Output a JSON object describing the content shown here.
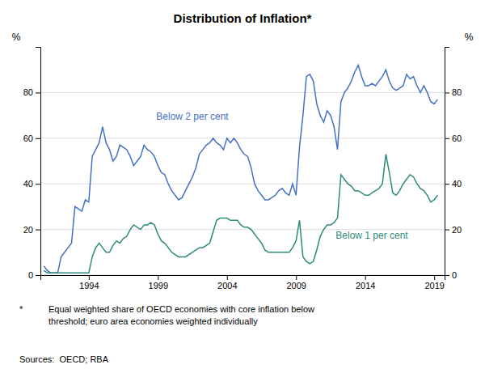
{
  "chart_data": {
    "type": "line",
    "title": "Distribution of Inflation*",
    "ylabel": "%",
    "y2label": "%",
    "footnote_marker": "*",
    "footnote": [
      "Equal weighted share of OECD economies with core inflation below",
      "threshold; euro area economies weighted individually"
    ],
    "sources": "Sources:  OECD; RBA",
    "xlim": [
      1990.5,
      2019.75
    ],
    "xticks": [
      1994,
      1999,
      2004,
      2009,
      2014,
      2019
    ],
    "ylim": [
      0,
      100
    ],
    "yticks": [
      0,
      20,
      40,
      60,
      80
    ],
    "y2lim": [
      0,
      100
    ],
    "y2ticks": [
      0,
      20,
      40,
      60,
      80
    ],
    "grid": true,
    "x": [
      1990.75,
      1991.0,
      1991.25,
      1991.5,
      1991.75,
      1992.0,
      1992.25,
      1992.5,
      1992.75,
      1993.0,
      1993.25,
      1993.5,
      1993.75,
      1994.0,
      1994.25,
      1994.5,
      1994.75,
      1995.0,
      1995.25,
      1995.5,
      1995.75,
      1996.0,
      1996.25,
      1996.5,
      1996.75,
      1997.0,
      1997.25,
      1997.5,
      1997.75,
      1998.0,
      1998.25,
      1998.5,
      1998.75,
      1999.0,
      1999.25,
      1999.5,
      1999.75,
      2000.0,
      2000.25,
      2000.5,
      2000.75,
      2001.0,
      2001.25,
      2001.5,
      2001.75,
      2002.0,
      2002.25,
      2002.5,
      2002.75,
      2003.0,
      2003.25,
      2003.5,
      2003.75,
      2004.0,
      2004.25,
      2004.5,
      2004.75,
      2005.0,
      2005.25,
      2005.5,
      2005.75,
      2006.0,
      2006.25,
      2006.5,
      2006.75,
      2007.0,
      2007.25,
      2007.5,
      2007.75,
      2008.0,
      2008.25,
      2008.5,
      2008.75,
      2009.0,
      2009.25,
      2009.5,
      2009.75,
      2010.0,
      2010.25,
      2010.5,
      2010.75,
      2011.0,
      2011.25,
      2011.5,
      2011.75,
      2012.0,
      2012.25,
      2012.5,
      2012.75,
      2013.0,
      2013.25,
      2013.5,
      2013.75,
      2014.0,
      2014.25,
      2014.5,
      2014.75,
      2015.0,
      2015.25,
      2015.5,
      2015.75,
      2016.0,
      2016.25,
      2016.5,
      2016.75,
      2017.0,
      2017.25,
      2017.5,
      2017.75,
      2018.0,
      2018.25,
      2018.5,
      2018.75,
      2019.0,
      2019.25
    ],
    "series": [
      {
        "name": "Below 2 per cent",
        "color": "#4472C4",
        "values": [
          4,
          2,
          1,
          1,
          1,
          8,
          10,
          12,
          14,
          30,
          29,
          28,
          33,
          32,
          52,
          55,
          58,
          65,
          58,
          55,
          50,
          52,
          57,
          56,
          55,
          52,
          48,
          50,
          52,
          57,
          55,
          54,
          52,
          48,
          45,
          44,
          40,
          37,
          35,
          33,
          34,
          37,
          40,
          43,
          47,
          53,
          55,
          57,
          58,
          60,
          58,
          57,
          55,
          60,
          58,
          60,
          58,
          55,
          53,
          52,
          47,
          40,
          37,
          35,
          33,
          33,
          34,
          35,
          37,
          38,
          36,
          35,
          40,
          35,
          56,
          70,
          87,
          88,
          85,
          75,
          70,
          67,
          72,
          70,
          65,
          55,
          76,
          80,
          82,
          85,
          89,
          92,
          87,
          83,
          83,
          84,
          83,
          85,
          87,
          90,
          85,
          82,
          81,
          82,
          83,
          88,
          86,
          87,
          83,
          80,
          83,
          80,
          76,
          75,
          77
        ]
      },
      {
        "name": "Below 1 per cent",
        "color": "#2E8B7A",
        "values": [
          2,
          1,
          1,
          1,
          1,
          1,
          1,
          1,
          1,
          1,
          1,
          1,
          1,
          1,
          8,
          12,
          14,
          12,
          10,
          10,
          13,
          15,
          14,
          16,
          17,
          20,
          22,
          21,
          20,
          22,
          22,
          23,
          22,
          18,
          15,
          14,
          12,
          10,
          9,
          8,
          8,
          8,
          9,
          10,
          11,
          12,
          12,
          13,
          14,
          19,
          24,
          25,
          25,
          25,
          24,
          24,
          24,
          22,
          21,
          21,
          20,
          18,
          16,
          14,
          11,
          10,
          10,
          10,
          10,
          10,
          10,
          10,
          12,
          15,
          24,
          8,
          6,
          5,
          6,
          11,
          17,
          20,
          22,
          22,
          23,
          25,
          44,
          42,
          40,
          39,
          37,
          37,
          36,
          35,
          35,
          36,
          37,
          38,
          40,
          53,
          45,
          36,
          35,
          37,
          40,
          42,
          44,
          43,
          40,
          38,
          37,
          35,
          32,
          33,
          35
        ]
      }
    ]
  }
}
